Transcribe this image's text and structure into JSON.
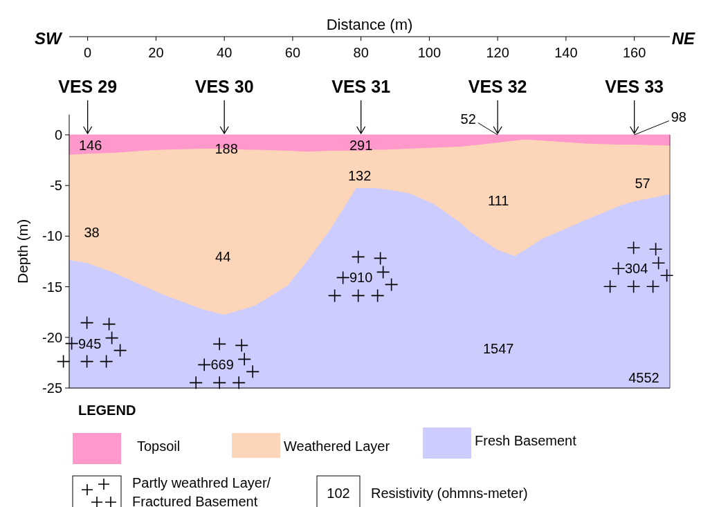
{
  "chart_data": {
    "type": "area",
    "xlabel": "Distance (m)",
    "ylabel": "Depth (m)",
    "legend_title": "LEGEND",
    "legend": "bottom",
    "x": [
      -5.4,
      0,
      8,
      16,
      22,
      34,
      40,
      46,
      49,
      58.6,
      64,
      71,
      78.6,
      80,
      84,
      87,
      94,
      101,
      109,
      112,
      120,
      125,
      128,
      133,
      146,
      156,
      160,
      170.4
    ],
    "stacked": true,
    "xlim": [
      -5.4,
      170.4
    ],
    "xticks": [
      0,
      20,
      40,
      60,
      80,
      100,
      120,
      140,
      160
    ],
    "ylim": [
      -25,
      2
    ],
    "yticks": [
      0,
      -5,
      -10,
      -15,
      -20,
      -25
    ],
    "series": [
      {
        "name": "Topsoil",
        "color": "#ff99cc",
        "values": [
          -2.0,
          -1.9,
          -1.8,
          -1.6,
          -1.5,
          -1.4,
          -1.4,
          -1.5,
          -1.5,
          -1.6,
          -1.7,
          -1.6,
          -1.6,
          -1.6,
          -1.5,
          -1.5,
          -1.4,
          -1.3,
          -1.2,
          -1.1,
          -0.8,
          -0.6,
          -0.5,
          -0.6,
          -0.9,
          -1.0,
          -1.0,
          -1.1
        ]
      },
      {
        "name": "Weathered Layer",
        "color": "#fdd5b8",
        "values": [
          -10.4,
          -10.8,
          -11.9,
          -13.3,
          -14.3,
          -15.9,
          -16.4,
          -15.7,
          -15.4,
          -13.3,
          -10.9,
          -7.8,
          -3.7,
          -3.7,
          -3.8,
          -3.9,
          -4.4,
          -5.5,
          -7.5,
          -8.5,
          -10.6,
          -11.4,
          -10.9,
          -9.7,
          -7.5,
          -6.0,
          -5.6,
          -4.8
        ]
      },
      {
        "name": "Fresh Basement",
        "color": "#ccccff",
        "values": [
          -12.6,
          -12.3,
          -11.3,
          -10.1,
          -9.2,
          -7.7,
          -7.2,
          -7.8,
          -8.1,
          -10.1,
          -12.4,
          -15.6,
          -19.7,
          -19.7,
          -19.7,
          -19.6,
          -19.2,
          -18.2,
          -16.3,
          -15.4,
          -13.6,
          -13.0,
          -13.6,
          -14.7,
          -16.6,
          -18.0,
          -18.4,
          -19.1
        ]
      }
    ],
    "annotations": [
      "SW",
      "NE",
      "Partly weathred Layer/ Fractured Basement",
      "102",
      "Resistivity (ohmns-meter)",
      "146",
      "188",
      "291",
      "52",
      "98",
      "38",
      "44",
      "132",
      "111",
      "57",
      "945",
      "669",
      "910",
      "304",
      "1547",
      "4552",
      {
        "text": "VES 29",
        "x": 0,
        "y": 0
      },
      {
        "text": "VES 30",
        "x": 40,
        "y": 0
      },
      {
        "text": "VES 31",
        "x": 80,
        "y": 0
      },
      {
        "text": "VES 32",
        "x": 120,
        "y": 0
      },
      {
        "text": "VES 33",
        "x": 160,
        "y": 0
      }
    ]
  }
}
